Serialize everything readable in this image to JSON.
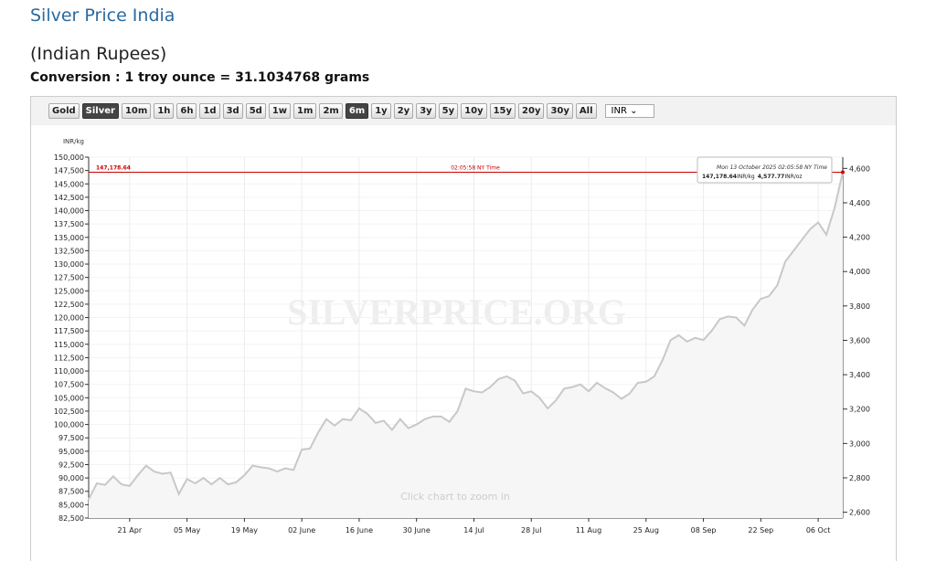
{
  "header": {
    "title": "Silver Price India",
    "subtitle": "(Indian Rupees)",
    "conversion": "Conversion : 1 troy ounce = 31.1034768 grams"
  },
  "toolbar": {
    "buttons": [
      {
        "label": "Gold",
        "active": false
      },
      {
        "label": "Silver",
        "active": true
      },
      {
        "label": "10m",
        "active": false
      },
      {
        "label": "1h",
        "active": false
      },
      {
        "label": "6h",
        "active": false
      },
      {
        "label": "1d",
        "active": false
      },
      {
        "label": "3d",
        "active": false
      },
      {
        "label": "5d",
        "active": false
      },
      {
        "label": "1w",
        "active": false
      },
      {
        "label": "1m",
        "active": false
      },
      {
        "label": "2m",
        "active": false
      },
      {
        "label": "6m",
        "active": true
      },
      {
        "label": "1y",
        "active": false
      },
      {
        "label": "2y",
        "active": false
      },
      {
        "label": "3y",
        "active": false
      },
      {
        "label": "5y",
        "active": false
      },
      {
        "label": "10y",
        "active": false
      },
      {
        "label": "15y",
        "active": false
      },
      {
        "label": "20y",
        "active": false
      },
      {
        "label": "30y",
        "active": false
      },
      {
        "label": "All",
        "active": false
      }
    ],
    "currency": "INR"
  },
  "chart_data": {
    "type": "line",
    "ylabel": "INR/kg",
    "watermark": "SILVERPRICE.ORG",
    "hint": "Click chart to zoom in",
    "grid": true,
    "categories": [
      null,
      null,
      null,
      null,
      null,
      "21 Apr",
      null,
      null,
      null,
      null,
      null,
      null,
      "05 May",
      null,
      null,
      null,
      null,
      null,
      null,
      "19 May",
      null,
      null,
      null,
      null,
      null,
      null,
      "02 June",
      null,
      null,
      null,
      null,
      null,
      null,
      "16 June",
      null,
      null,
      null,
      null,
      null,
      null,
      "30 June",
      null,
      null,
      null,
      null,
      null,
      null,
      "14 Jul",
      null,
      null,
      null,
      null,
      null,
      null,
      "28 Jul",
      null,
      null,
      null,
      null,
      null,
      null,
      "11 Aug",
      null,
      null,
      null,
      null,
      null,
      null,
      "25 Aug",
      null,
      null,
      null,
      null,
      null,
      null,
      "08 Sep",
      null,
      null,
      null,
      null,
      null,
      null,
      "22 Sep",
      null,
      null,
      null,
      null,
      null,
      null,
      "06 Oct",
      null,
      null,
      null
    ],
    "series": [
      {
        "name": "Silver",
        "color": "#c8c8c8",
        "values": [
          86000,
          89000,
          88700,
          90300,
          88800,
          88500,
          90500,
          92300,
          91200,
          90800,
          91000,
          87000,
          89800,
          89000,
          90000,
          88800,
          90000,
          88800,
          89200,
          90500,
          92300,
          92000,
          91800,
          91200,
          91800,
          91500,
          95300,
          95500,
          98500,
          101000,
          99800,
          101000,
          100800,
          103000,
          102000,
          100300,
          100700,
          99000,
          101000,
          99300,
          100000,
          101000,
          101500,
          101500,
          100500,
          102500,
          106700,
          106200,
          106000,
          107000,
          108500,
          109000,
          108200,
          105800,
          106200,
          105000,
          103000,
          104500,
          106700,
          107000,
          107500,
          106200,
          107800,
          106800,
          106000,
          104800,
          105800,
          107800,
          108000,
          109000,
          112000,
          115800,
          116700,
          115500,
          116200,
          115800,
          117500,
          119700,
          120200,
          120000,
          118500,
          121500,
          123500,
          124000,
          126000,
          130500,
          132500,
          134500,
          136500,
          137800,
          135500,
          140500,
          147178.64
        ]
      }
    ],
    "ylim": [
      82500,
      150000
    ],
    "yticks": [
      {
        "value": 82500,
        "label": "82,500"
      },
      {
        "value": 85000,
        "label": "85,000"
      },
      {
        "value": 87500,
        "label": "87,500"
      },
      {
        "value": 90000,
        "label": "90,000"
      },
      {
        "value": 92500,
        "label": "92,500"
      },
      {
        "value": 95000,
        "label": "95,000"
      },
      {
        "value": 97500,
        "label": "97,500"
      },
      {
        "value": 100000,
        "label": "100,000"
      },
      {
        "value": 102500,
        "label": "102,500"
      },
      {
        "value": 105000,
        "label": "105,000"
      },
      {
        "value": 107500,
        "label": "107,500"
      },
      {
        "value": 110000,
        "label": "110,000"
      },
      {
        "value": 112500,
        "label": "112,500"
      },
      {
        "value": 115000,
        "label": "115,000"
      },
      {
        "value": 117500,
        "label": "117,500"
      },
      {
        "value": 120000,
        "label": "120,000"
      },
      {
        "value": 122500,
        "label": "122,500"
      },
      {
        "value": 125000,
        "label": "125,000"
      },
      {
        "value": 127500,
        "label": "127,500"
      },
      {
        "value": 130000,
        "label": "130,000"
      },
      {
        "value": 132500,
        "label": "132,500"
      },
      {
        "value": 135000,
        "label": "135,000"
      },
      {
        "value": 137500,
        "label": "137,500"
      },
      {
        "value": 140000,
        "label": "140,000"
      },
      {
        "value": 142500,
        "label": "142,500"
      },
      {
        "value": 145000,
        "label": "145,000"
      },
      {
        "value": 147500,
        "label": "147,500"
      },
      {
        "value": 150000,
        "label": "150,000"
      }
    ],
    "y2lim": [
      2566,
      4665.5
    ],
    "y2ticks": [
      {
        "value": 2600,
        "label": "2,600"
      },
      {
        "value": 2800,
        "label": "2,800"
      },
      {
        "value": 3000,
        "label": "3,000"
      },
      {
        "value": 3200,
        "label": "3,200"
      },
      {
        "value": 3400,
        "label": "3,400"
      },
      {
        "value": 3600,
        "label": "3,600"
      },
      {
        "value": 3800,
        "label": "3,800"
      },
      {
        "value": 4000,
        "label": "4,000"
      },
      {
        "value": 4200,
        "label": "4,200"
      },
      {
        "value": 4400,
        "label": "4,400"
      },
      {
        "value": 4600,
        "label": "4,600"
      }
    ],
    "current": {
      "value": 147178.64,
      "label": "147,178.64",
      "time_label": "02:05:58 NY Time",
      "color": "#cc0000"
    },
    "tooltip": {
      "date": "Mon 13 October 2025 02:05:58 NY Time",
      "per_kg": "147,178.64",
      "per_kg_unit": "INR/kg",
      "per_oz": {
        "value": 4577.77,
        "label": "4,577.77"
      },
      "per_oz_unit": "INR/oz"
    }
  }
}
